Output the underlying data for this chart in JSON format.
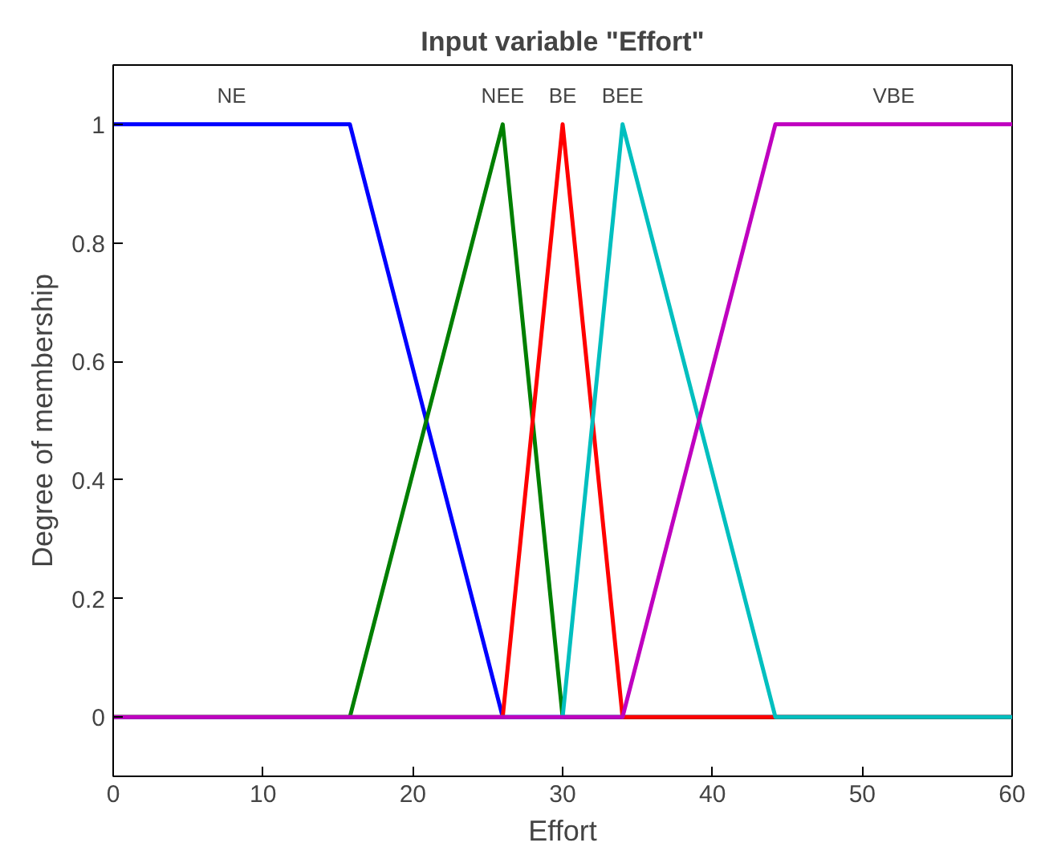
{
  "chart_data": {
    "type": "line",
    "title": "Input variable \"Effort\"",
    "xlabel": "Effort",
    "ylabel": "Degree of membership",
    "xlim": [
      0,
      60
    ],
    "ylim": [
      -0.1,
      1.1
    ],
    "xticks": [
      0,
      10,
      20,
      30,
      40,
      50,
      60
    ],
    "yticks": [
      0,
      0.2,
      0.4,
      0.6,
      0.8,
      1
    ],
    "grid": false,
    "legend": false,
    "marker": "none",
    "line_style": "solid",
    "series": [
      {
        "name": "NE",
        "color": "#0000ff",
        "x": [
          0,
          15.8,
          26,
          60
        ],
        "values": [
          1,
          1,
          0,
          0
        ]
      },
      {
        "name": "NEE",
        "color": "#007f00",
        "x": [
          0,
          15.8,
          26,
          30,
          60
        ],
        "values": [
          0,
          0,
          1,
          0,
          0
        ]
      },
      {
        "name": "BE",
        "color": "#ff0000",
        "x": [
          0,
          26,
          30,
          34,
          60
        ],
        "values": [
          0,
          0,
          1,
          0,
          0
        ]
      },
      {
        "name": "BEE",
        "color": "#00bfbf",
        "x": [
          0,
          30,
          34,
          44.2,
          60
        ],
        "values": [
          0,
          0,
          1,
          0,
          0
        ]
      },
      {
        "name": "VBE",
        "color": "#bf00bf",
        "x": [
          0,
          34,
          44.2,
          60
        ],
        "values": [
          0,
          0,
          1,
          1
        ]
      }
    ]
  }
}
